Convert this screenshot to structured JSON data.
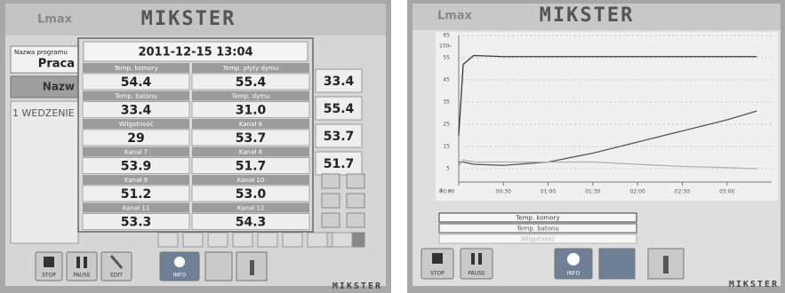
{
  "left_screen": {
    "header": {
      "logo": "Lmax",
      "brand": "MIKSTER"
    },
    "program_label": "Nazwa programu",
    "program_name": "Praca",
    "tab_label": "Nazw",
    "step": "1 WEDZENIE",
    "background_values": [
      "33.4",
      "55.4",
      "53.7",
      "51.7"
    ],
    "popup": {
      "datetime": "2011-12-15 13:04",
      "channels": [
        {
          "label": "Temp. komory",
          "value": "54.4"
        },
        {
          "label": "Temp. płyty dymu",
          "value": "55.4"
        },
        {
          "label": "Temp. batonu",
          "value": "33.4"
        },
        {
          "label": "Temp. dymu",
          "value": "31.0"
        },
        {
          "label": "Wilgotność",
          "value": "29"
        },
        {
          "label": "Kanał 6",
          "value": "53.7"
        },
        {
          "label": "Kanał 7",
          "value": "53.9"
        },
        {
          "label": "Kanał 8",
          "value": "51.7"
        },
        {
          "label": "Kanał 9",
          "value": "51.2"
        },
        {
          "label": "Kanał 10",
          "value": "53.0"
        },
        {
          "label": "Kanał 11",
          "value": "53.3"
        },
        {
          "label": "Kanał 12",
          "value": "54.3"
        }
      ]
    },
    "buttons": [
      "STOP",
      "PAUSE",
      "EDIT",
      "INFO"
    ],
    "footer_brand": "MIKSTER"
  },
  "right_screen": {
    "header": {
      "logo": "Lmax",
      "brand": "MIKSTER"
    },
    "trend": {
      "x": [
        0,
        3,
        10,
        30,
        60,
        90,
        120,
        150,
        180,
        200
      ],
      "xlim": [
        0,
        210
      ],
      "xticks": [
        {
          "value": 0,
          "label": "00:00"
        },
        {
          "value": 30,
          "label": "00:30"
        },
        {
          "value": 60,
          "label": "01:00"
        },
        {
          "value": 90,
          "label": "01:30"
        },
        {
          "value": 120,
          "label": "02:00"
        },
        {
          "value": 150,
          "label": "02:30"
        },
        {
          "value": 180,
          "label": "03:00"
        }
      ],
      "ylim": [
        -1,
        65
      ],
      "yticks": [
        5,
        15,
        25,
        35,
        45,
        55,
        65
      ],
      "y2lim": [
        4,
        100
      ],
      "y2ticks": [
        4,
        100
      ],
      "series": [
        {
          "name": "Temp. komory",
          "color": "#3a3a3a",
          "values": [
            20,
            52,
            56,
            55.5,
            55.5,
            55.5,
            55.5,
            55.5,
            55.5,
            55.5
          ]
        },
        {
          "name": "Temp. batonu",
          "color": "#555555",
          "values": [
            8,
            8,
            7,
            6.5,
            8,
            12,
            17,
            22,
            27,
            31
          ]
        },
        {
          "name": "Wilgotność",
          "color": "#b0b0b0",
          "values": [
            6,
            9,
            8,
            8,
            8,
            8,
            7,
            6,
            5.5,
            5
          ]
        }
      ]
    },
    "buttons": [
      "STOP",
      "PAUSE",
      "INFO"
    ],
    "footer_brand": "MIKSTER"
  }
}
